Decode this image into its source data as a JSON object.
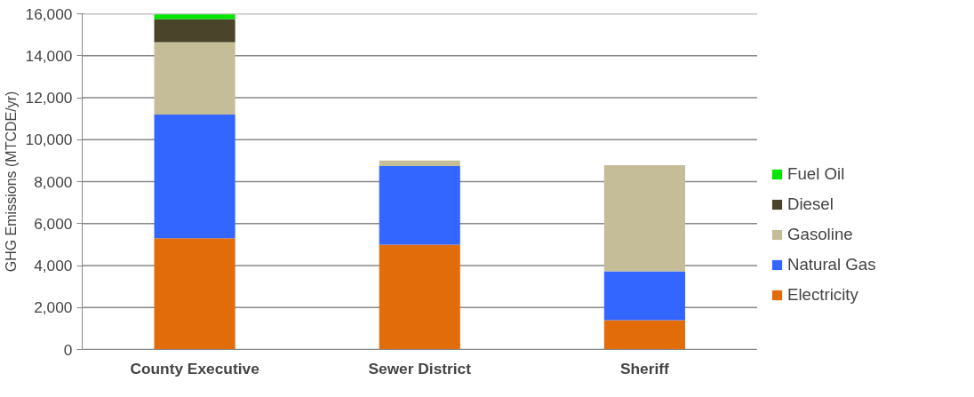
{
  "chart_data": {
    "type": "bar",
    "stacked": true,
    "ylabel": "GHG Emissions (MTCDE/yr)",
    "categories": [
      "County Executive",
      "Sewer District",
      "Sheriff"
    ],
    "series": [
      {
        "name": "Electricity",
        "color": "#e36c0a",
        "values": [
          5300,
          5000,
          1400
        ]
      },
      {
        "name": "Natural Gas",
        "color": "#3366ff",
        "values": [
          5900,
          3740,
          2330
        ]
      },
      {
        "name": "Gasoline",
        "color": "#c4bd97",
        "values": [
          3450,
          270,
          5050
        ]
      },
      {
        "name": "Diesel",
        "color": "#4a452a",
        "values": [
          1100,
          0,
          0
        ]
      },
      {
        "name": "Fuel Oil",
        "color": "#00e600",
        "values": [
          220,
          0,
          0
        ]
      }
    ],
    "ylim": [
      0,
      16000
    ],
    "yticks": [
      {
        "value": 0,
        "label": "0"
      },
      {
        "value": 2000,
        "label": "2,000"
      },
      {
        "value": 4000,
        "label": "4,000"
      },
      {
        "value": 6000,
        "label": "6,000"
      },
      {
        "value": 8000,
        "label": "8,000"
      },
      {
        "value": 10000,
        "label": "10,000"
      },
      {
        "value": 12000,
        "label": "12,000"
      },
      {
        "value": 14000,
        "label": "14,000"
      },
      {
        "value": 16000,
        "label": "16,000"
      }
    ],
    "grid": "y",
    "legend": "right"
  }
}
